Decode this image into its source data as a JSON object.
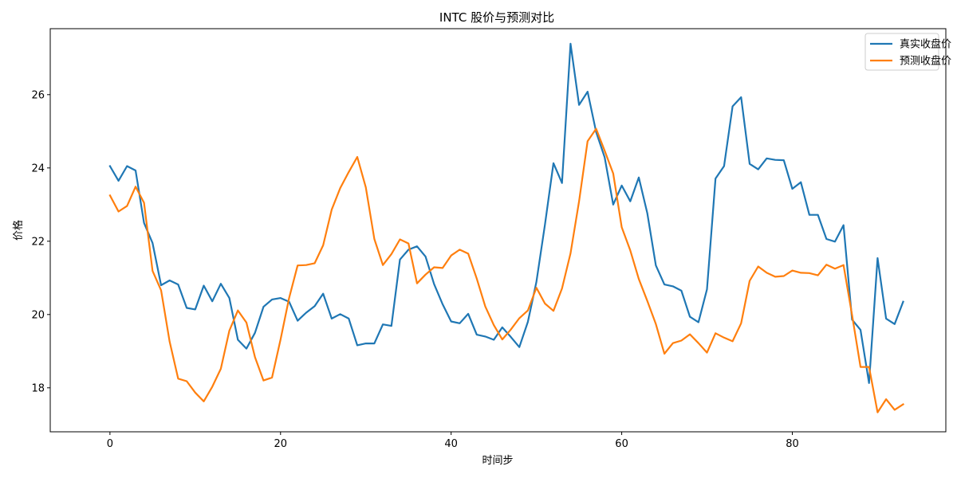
{
  "chart_data": {
    "type": "line",
    "title": "INTC 股价与预测对比",
    "xlabel": "时间步",
    "ylabel": "价格",
    "xlim": [
      -7,
      98
    ],
    "ylim": [
      16.8,
      27.8
    ],
    "xticks": [
      0,
      20,
      40,
      60,
      80
    ],
    "yticks": [
      18,
      20,
      22,
      24,
      26
    ],
    "grid": false,
    "legend_position": "top-right",
    "x": [
      0,
      1,
      2,
      3,
      4,
      5,
      6,
      7,
      8,
      9,
      10,
      11,
      12,
      13,
      14,
      15,
      16,
      17,
      18,
      19,
      20,
      21,
      22,
      23,
      24,
      25,
      26,
      27,
      28,
      29,
      30,
      31,
      32,
      33,
      34,
      35,
      36,
      37,
      38,
      39,
      40,
      41,
      42,
      43,
      44,
      45,
      46,
      47,
      48,
      49,
      50,
      51,
      52,
      53,
      54,
      55,
      56,
      57,
      58,
      59,
      60,
      61,
      62,
      63,
      64,
      65,
      66,
      67,
      68,
      69,
      70,
      71,
      72,
      73,
      74,
      75,
      76,
      77,
      78,
      79,
      80,
      81,
      82,
      83,
      84,
      85,
      86,
      87,
      88,
      89,
      90,
      91,
      92,
      93
    ],
    "series": [
      {
        "name": "真实收盘价",
        "color": "#1f77b4",
        "values": [
          24.05,
          23.65,
          24.05,
          23.93,
          22.5,
          21.95,
          20.8,
          20.93,
          20.82,
          20.18,
          20.14,
          20.79,
          20.36,
          20.84,
          20.45,
          19.31,
          19.07,
          19.5,
          20.21,
          20.41,
          20.45,
          20.35,
          19.83,
          20.05,
          20.23,
          20.57,
          19.89,
          20.01,
          19.89,
          19.16,
          19.21,
          19.21,
          19.73,
          19.69,
          21.5,
          21.77,
          21.86,
          21.58,
          20.83,
          20.28,
          19.81,
          19.76,
          20.02,
          19.45,
          19.4,
          19.31,
          19.65,
          19.39,
          19.11,
          19.8,
          20.89,
          22.45,
          24.13,
          23.59,
          27.39,
          25.72,
          26.08,
          24.98,
          24.29,
          23.0,
          23.52,
          23.09,
          23.74,
          22.76,
          21.34,
          20.82,
          20.77,
          20.65,
          19.94,
          19.79,
          20.69,
          23.71,
          24.05,
          25.68,
          25.93,
          24.11,
          23.96,
          24.26,
          24.22,
          24.21,
          23.43,
          23.61,
          22.72,
          22.72,
          22.06,
          21.99,
          22.44,
          19.86,
          19.58,
          18.13,
          21.54,
          19.89,
          19.74,
          20.35
        ]
      },
      {
        "name": "预测收盘价",
        "color": "#ff7f0e",
        "values": [
          23.25,
          22.81,
          22.96,
          23.49,
          23.05,
          21.19,
          20.66,
          19.26,
          18.25,
          18.18,
          17.87,
          17.63,
          18.03,
          18.52,
          19.56,
          20.11,
          19.78,
          18.84,
          18.2,
          18.28,
          19.32,
          20.45,
          21.34,
          21.35,
          21.4,
          21.89,
          22.86,
          23.45,
          23.89,
          24.3,
          23.47,
          22.06,
          21.35,
          21.65,
          22.05,
          21.94,
          20.85,
          21.09,
          21.29,
          21.27,
          21.61,
          21.77,
          21.66,
          20.98,
          20.22,
          19.71,
          19.32,
          19.59,
          19.9,
          20.11,
          20.73,
          20.3,
          20.1,
          20.71,
          21.67,
          23.09,
          24.73,
          25.07,
          24.47,
          23.85,
          22.38,
          21.75,
          20.97,
          20.37,
          19.74,
          18.93,
          19.22,
          19.29,
          19.46,
          19.22,
          18.96,
          19.49,
          19.37,
          19.27,
          19.76,
          20.92,
          21.31,
          21.14,
          21.03,
          21.05,
          21.2,
          21.14,
          21.13,
          21.07,
          21.36,
          21.25,
          21.35,
          19.99,
          18.57,
          18.57,
          17.33,
          17.69,
          17.4,
          17.55
        ]
      }
    ]
  }
}
